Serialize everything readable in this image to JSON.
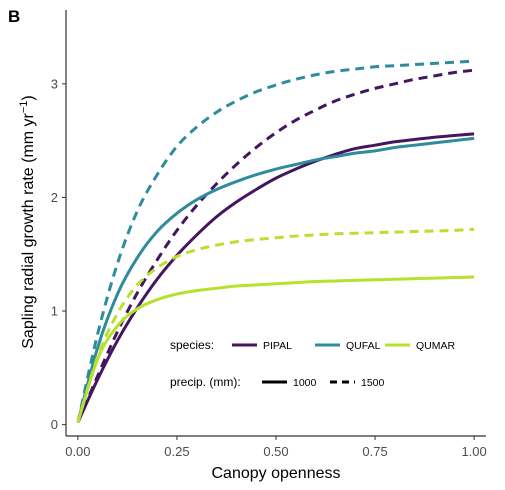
{
  "panel_label": "B",
  "colors": {
    "PIPAL": "#44165f",
    "QUFAL": "#2e8c9c",
    "QUMAR": "#b8e02e",
    "axis": "#333333"
  },
  "chart_data": {
    "type": "line",
    "title": "",
    "xlabel": "Canopy openness",
    "ylabel_main": "Sapling radial growth rate (mm yr",
    "ylabel_sup": "−1",
    "ylabel_end": ")",
    "xlim": [
      -0.03,
      1.03
    ],
    "ylim": [
      -0.1,
      3.65
    ],
    "xticks": [
      0.0,
      0.25,
      0.5,
      0.75,
      1.0
    ],
    "xtick_labels": [
      "0.00",
      "0.25",
      "0.50",
      "0.75",
      "1.00"
    ],
    "yticks": [
      0,
      1,
      2,
      3
    ],
    "ytick_labels": [
      "0",
      "1",
      "2",
      "3"
    ],
    "grid": false,
    "legend": {
      "placement": "bottom-right",
      "species_title": "species:",
      "precip_title": "precip. (mm):",
      "species": [
        "PIPAL",
        "QUFAL",
        "QUMAR"
      ],
      "precip": [
        {
          "label": "1000",
          "dash": "solid"
        },
        {
          "label": "1500",
          "dash": "dashed"
        }
      ]
    },
    "x": [
      0.0,
      0.05,
      0.1,
      0.15,
      0.2,
      0.25,
      0.3,
      0.35,
      0.4,
      0.45,
      0.5,
      0.55,
      0.6,
      0.65,
      0.7,
      0.75,
      0.8,
      0.85,
      0.9,
      0.95,
      1.0
    ],
    "series": [
      {
        "species": "PIPAL",
        "precip": "1000",
        "values": [
          0.02,
          0.4,
          0.74,
          1.03,
          1.28,
          1.49,
          1.67,
          1.83,
          1.96,
          2.07,
          2.17,
          2.25,
          2.32,
          2.38,
          2.43,
          2.46,
          2.49,
          2.51,
          2.53,
          2.545,
          2.56
        ]
      },
      {
        "species": "PIPAL",
        "precip": "1500",
        "values": [
          0.02,
          0.43,
          0.82,
          1.16,
          1.45,
          1.71,
          1.93,
          2.12,
          2.29,
          2.44,
          2.57,
          2.68,
          2.77,
          2.85,
          2.91,
          2.96,
          3.0,
          3.04,
          3.07,
          3.1,
          3.12
        ]
      },
      {
        "species": "QUFAL",
        "precip": "1000",
        "values": [
          0.02,
          0.68,
          1.15,
          1.47,
          1.7,
          1.86,
          1.98,
          2.07,
          2.14,
          2.2,
          2.25,
          2.29,
          2.33,
          2.36,
          2.39,
          2.41,
          2.44,
          2.46,
          2.48,
          2.5,
          2.52
        ]
      },
      {
        "species": "QUFAL",
        "precip": "1500",
        "values": [
          0.02,
          0.8,
          1.42,
          1.88,
          2.2,
          2.45,
          2.62,
          2.75,
          2.85,
          2.93,
          2.99,
          3.04,
          3.08,
          3.11,
          3.13,
          3.15,
          3.16,
          3.17,
          3.18,
          3.19,
          3.2
        ]
      },
      {
        "species": "QUMAR",
        "precip": "1000",
        "values": [
          0.02,
          0.58,
          0.87,
          1.02,
          1.1,
          1.15,
          1.18,
          1.2,
          1.22,
          1.23,
          1.24,
          1.25,
          1.26,
          1.265,
          1.27,
          1.275,
          1.28,
          1.285,
          1.29,
          1.295,
          1.3
        ]
      },
      {
        "species": "QUMAR",
        "precip": "1500",
        "values": [
          0.02,
          0.6,
          0.98,
          1.23,
          1.38,
          1.48,
          1.54,
          1.58,
          1.61,
          1.63,
          1.645,
          1.66,
          1.67,
          1.68,
          1.685,
          1.69,
          1.695,
          1.7,
          1.705,
          1.71,
          1.72
        ]
      }
    ]
  }
}
